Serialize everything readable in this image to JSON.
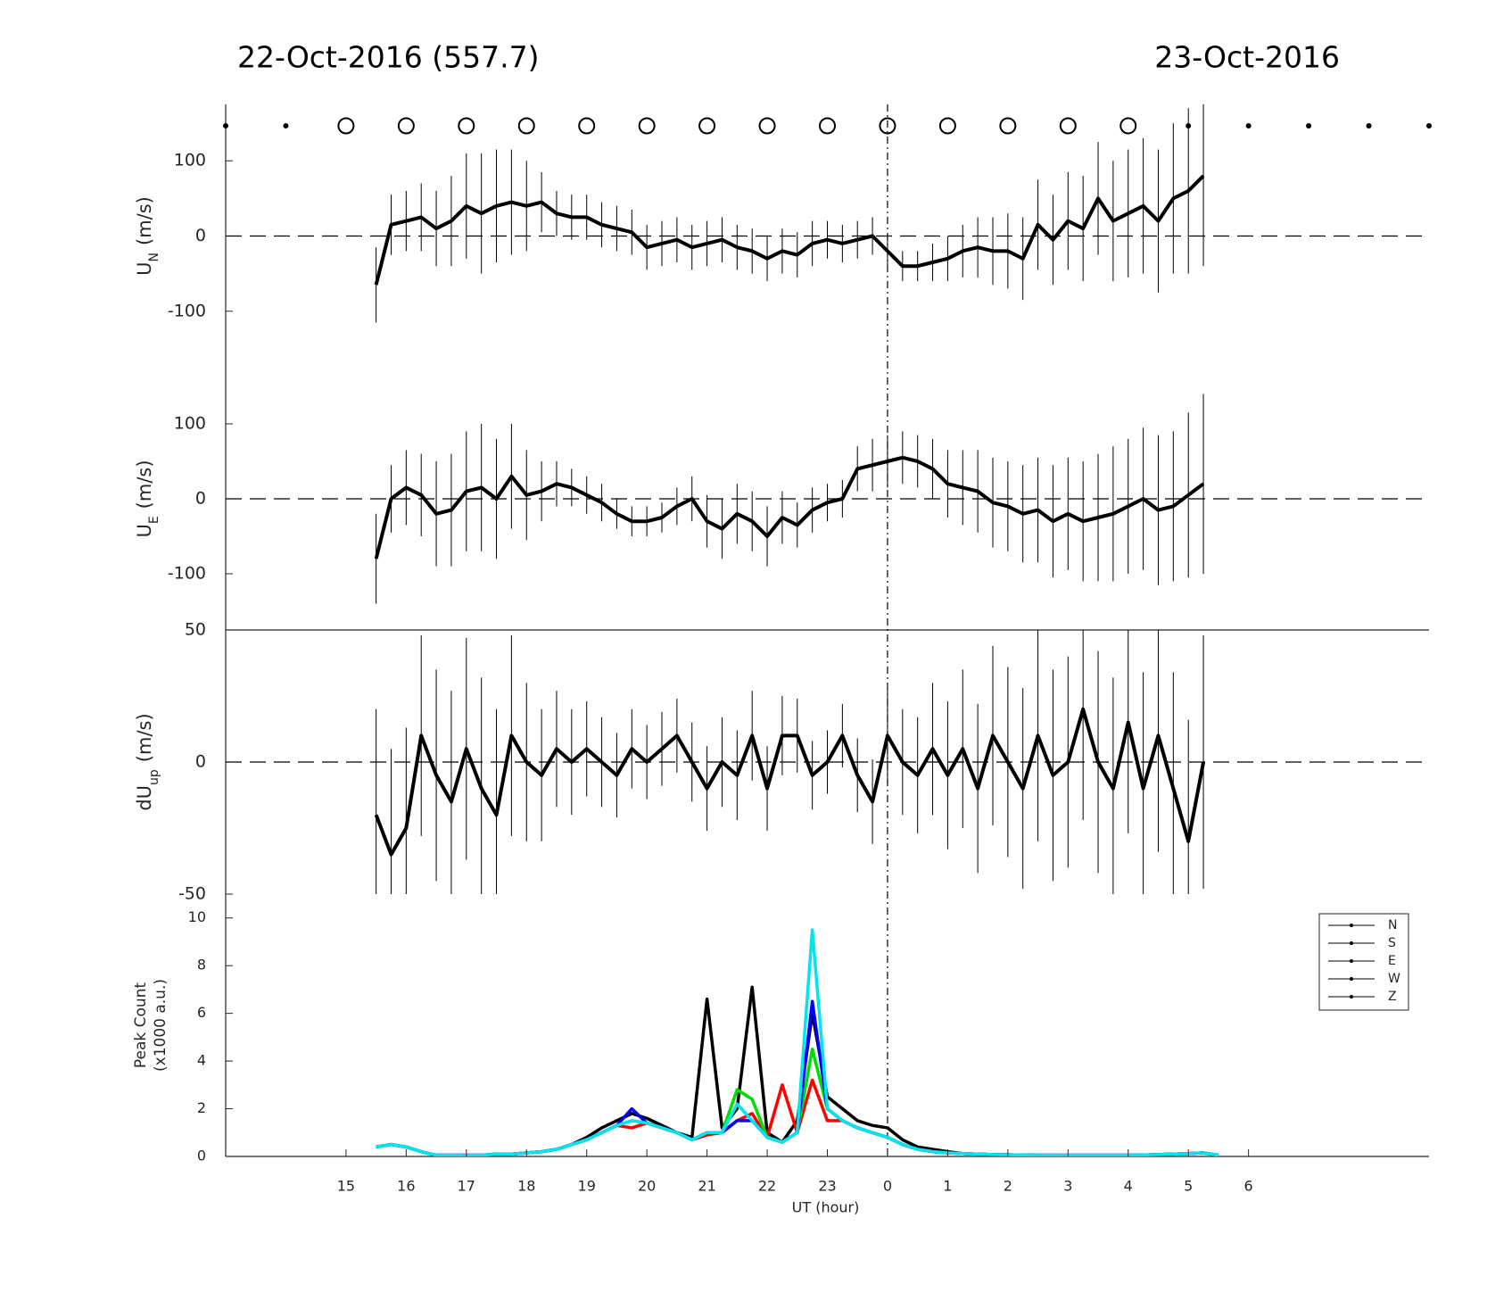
{
  "header": {
    "left": "22-Oct-2016 (557.7)",
    "right": "23-Oct-2016"
  },
  "markers": {
    "circle_hours": [
      15,
      16,
      17,
      18,
      19,
      20,
      21,
      22,
      23,
      24,
      25,
      26,
      27,
      28
    ],
    "dot_hours": [
      13,
      14,
      29,
      30,
      31,
      32,
      33
    ]
  },
  "vline": 24,
  "chart_data": [
    {
      "type": "errorbar",
      "ylabel": "U",
      "ylabel_sub": "N",
      "ylabel_unit": "(m/s)",
      "xlim": [
        13,
        33
      ],
      "ylim": [
        -175,
        175
      ],
      "yticks": [
        -100,
        0,
        100
      ],
      "x": [
        15.5,
        15.75,
        16,
        16.25,
        16.5,
        16.75,
        17,
        17.25,
        17.5,
        17.75,
        18,
        18.25,
        18.5,
        18.75,
        19,
        19.25,
        19.5,
        19.75,
        20,
        20.25,
        20.5,
        20.75,
        21,
        21.25,
        21.5,
        21.75,
        22,
        22.25,
        22.5,
        22.75,
        23,
        23.25,
        23.5,
        23.75,
        24,
        24.25,
        24.5,
        24.75,
        25,
        25.25,
        25.5,
        25.75,
        26,
        26.25,
        26.5,
        26.75,
        27,
        27.25,
        27.5,
        27.75,
        28,
        28.25,
        28.5,
        28.75,
        29,
        29.25
      ],
      "values": [
        -65,
        15,
        20,
        25,
        10,
        20,
        40,
        30,
        40,
        45,
        40,
        45,
        30,
        25,
        25,
        15,
        10,
        5,
        -15,
        -10,
        -5,
        -15,
        -10,
        -5,
        -15,
        -20,
        -30,
        -20,
        -25,
        -10,
        -5,
        -10,
        -5,
        0,
        -20,
        -40,
        -40,
        -35,
        -30,
        -20,
        -15,
        -20,
        -20,
        -30,
        15,
        -5,
        20,
        10,
        50,
        20,
        30,
        40,
        20,
        50,
        60,
        80
      ],
      "errors": [
        50,
        40,
        40,
        45,
        50,
        60,
        70,
        80,
        75,
        70,
        60,
        40,
        30,
        30,
        30,
        30,
        30,
        30,
        30,
        30,
        30,
        30,
        30,
        30,
        30,
        30,
        30,
        30,
        30,
        30,
        25,
        25,
        25,
        25,
        20,
        20,
        20,
        25,
        30,
        35,
        40,
        45,
        50,
        55,
        60,
        60,
        65,
        70,
        75,
        80,
        85,
        90,
        95,
        100,
        110,
        120
      ]
    },
    {
      "type": "errorbar",
      "ylabel": "U",
      "ylabel_sub": "E",
      "ylabel_unit": "(m/s)",
      "xlim": [
        13,
        33
      ],
      "ylim": [
        -175,
        175
      ],
      "yticks": [
        -100,
        0,
        100
      ],
      "x": [
        15.5,
        15.75,
        16,
        16.25,
        16.5,
        16.75,
        17,
        17.25,
        17.5,
        17.75,
        18,
        18.25,
        18.5,
        18.75,
        19,
        19.25,
        19.5,
        19.75,
        20,
        20.25,
        20.5,
        20.75,
        21,
        21.25,
        21.5,
        21.75,
        22,
        22.25,
        22.5,
        22.75,
        23,
        23.25,
        23.5,
        23.75,
        24,
        24.25,
        24.5,
        24.75,
        25,
        25.25,
        25.5,
        25.75,
        26,
        26.25,
        26.5,
        26.75,
        27,
        27.25,
        27.5,
        27.75,
        28,
        28.25,
        28.5,
        28.75,
        29,
        29.25
      ],
      "values": [
        -80,
        0,
        15,
        5,
        -20,
        -15,
        10,
        15,
        0,
        30,
        5,
        10,
        20,
        15,
        5,
        -5,
        -20,
        -30,
        -30,
        -25,
        -10,
        0,
        -30,
        -40,
        -20,
        -30,
        -50,
        -25,
        -35,
        -15,
        -5,
        0,
        40,
        45,
        50,
        55,
        50,
        40,
        20,
        15,
        10,
        -5,
        -10,
        -20,
        -15,
        -30,
        -20,
        -30,
        -25,
        -20,
        -10,
        0,
        -15,
        -10,
        5,
        20
      ],
      "errors": [
        60,
        45,
        50,
        55,
        70,
        75,
        80,
        85,
        80,
        70,
        60,
        40,
        30,
        25,
        25,
        25,
        20,
        20,
        20,
        20,
        25,
        30,
        35,
        40,
        40,
        40,
        40,
        35,
        30,
        30,
        25,
        25,
        30,
        35,
        35,
        35,
        35,
        40,
        45,
        50,
        55,
        60,
        60,
        65,
        70,
        75,
        75,
        80,
        85,
        90,
        90,
        95,
        100,
        100,
        110,
        120
      ]
    },
    {
      "type": "errorbar",
      "ylabel": "dU",
      "ylabel_sub": "up",
      "ylabel_unit": "(m/s)",
      "xlim": [
        13,
        33
      ],
      "ylim": [
        -50,
        50
      ],
      "yticks": [
        -50,
        0,
        50
      ],
      "x": [
        15.5,
        15.75,
        16,
        16.25,
        16.5,
        16.75,
        17,
        17.25,
        17.5,
        17.75,
        18,
        18.25,
        18.5,
        18.75,
        19,
        19.25,
        19.5,
        19.75,
        20,
        20.25,
        20.5,
        20.75,
        21,
        21.25,
        21.5,
        21.75,
        22,
        22.25,
        22.5,
        22.75,
        23,
        23.25,
        23.5,
        23.75,
        24,
        24.25,
        24.5,
        24.75,
        25,
        25.25,
        25.5,
        25.75,
        26,
        26.25,
        26.5,
        26.75,
        27,
        27.25,
        27.5,
        27.75,
        28,
        28.25,
        28.5,
        28.75,
        29,
        29.25
      ],
      "values": [
        -20,
        -35,
        -25,
        10,
        -5,
        -15,
        5,
        -10,
        -20,
        10,
        0,
        -5,
        5,
        0,
        5,
        0,
        -5,
        5,
        0,
        5,
        10,
        0,
        -10,
        0,
        -5,
        10,
        -10,
        10,
        10,
        -5,
        0,
        10,
        -5,
        -15,
        10,
        0,
        -5,
        5,
        -5,
        5,
        -10,
        10,
        0,
        -10,
        10,
        -5,
        0,
        20,
        0,
        -10,
        15,
        -10,
        10,
        -10,
        -30,
        0
      ],
      "errors": [
        40,
        40,
        38,
        38,
        40,
        42,
        42,
        42,
        40,
        38,
        30,
        25,
        22,
        20,
        18,
        17,
        16,
        15,
        14,
        14,
        14,
        15,
        16,
        17,
        17,
        17,
        16,
        15,
        14,
        13,
        12,
        12,
        14,
        16,
        18,
        20,
        22,
        25,
        28,
        30,
        32,
        34,
        36,
        38,
        40,
        40,
        40,
        42,
        42,
        42,
        42,
        44,
        44,
        44,
        46,
        48
      ]
    },
    {
      "type": "line",
      "ylabel": "Peak Count",
      "ylabel2": "(x1000 a.u.)",
      "xlabel": "UT (hour)",
      "xlim": [
        13,
        33
      ],
      "ylim": [
        0,
        11
      ],
      "yticks": [
        0,
        2,
        4,
        6,
        8,
        10
      ],
      "xticks": [
        15,
        16,
        17,
        18,
        19,
        20,
        21,
        22,
        23,
        {
          "value": 24,
          "label": "0"
        },
        {
          "value": 25,
          "label": "1"
        },
        {
          "value": 26,
          "label": "2"
        },
        {
          "value": 27,
          "label": "3"
        },
        {
          "value": 28,
          "label": "4"
        },
        {
          "value": 29,
          "label": "5"
        },
        {
          "value": 30,
          "label": "6"
        }
      ],
      "legend_line_color": "#000000",
      "x": [
        15.5,
        15.75,
        16,
        16.25,
        16.5,
        16.75,
        17,
        17.25,
        17.5,
        17.75,
        18,
        18.25,
        18.5,
        18.75,
        19,
        19.25,
        19.5,
        19.75,
        20,
        20.25,
        20.5,
        20.75,
        21,
        21.25,
        21.5,
        21.75,
        22,
        22.25,
        22.5,
        22.75,
        23,
        23.25,
        23.5,
        23.75,
        24,
        24.25,
        24.5,
        24.75,
        25,
        25.25,
        25.5,
        25.75,
        26,
        26.25,
        26.5,
        26.75,
        27,
        27.25,
        27.5,
        27.75,
        28,
        28.25,
        28.5,
        28.75,
        29,
        29.25,
        29.5
      ],
      "series": [
        {
          "name": "N",
          "color": "#000000",
          "values": [
            0.4,
            0.5,
            0.4,
            0.2,
            0.05,
            0.05,
            0.05,
            0.05,
            0.1,
            0.1,
            0.15,
            0.2,
            0.3,
            0.5,
            0.8,
            1.2,
            1.5,
            1.8,
            1.6,
            1.3,
            1.0,
            0.8,
            6.6,
            1.2,
            2.0,
            7.1,
            1.0,
            0.6,
            1.5,
            6.0,
            2.5,
            2.0,
            1.5,
            1.3,
            1.2,
            0.7,
            0.4,
            0.3,
            0.2,
            0.12,
            0.1,
            0.08,
            0.07,
            0.06,
            0.05,
            0.05,
            0.05,
            0.05,
            0.05,
            0.05,
            0.05,
            0.06,
            0.08,
            0.1,
            0.12,
            0.15,
            0.05
          ]
        },
        {
          "name": "S",
          "color": "#ff0000",
          "values": [
            0.4,
            0.5,
            0.4,
            0.2,
            0.05,
            0.05,
            0.05,
            0.05,
            0.1,
            0.1,
            0.15,
            0.2,
            0.3,
            0.5,
            0.7,
            1.0,
            1.3,
            1.2,
            1.4,
            1.2,
            1.0,
            0.7,
            0.9,
            1.0,
            1.5,
            1.8,
            0.8,
            3.0,
            1.0,
            3.2,
            1.5,
            1.5,
            1.2,
            1.0,
            0.8,
            0.5,
            0.3,
            0.2,
            0.15,
            0.12,
            0.1,
            0.08,
            0.07,
            0.06,
            0.05,
            0.05,
            0.05,
            0.05,
            0.05,
            0.05,
            0.05,
            0.06,
            0.08,
            0.1,
            0.12,
            0.15,
            0.05
          ]
        },
        {
          "name": "E",
          "color": "#00dd00",
          "values": [
            0.4,
            0.5,
            0.4,
            0.2,
            0.05,
            0.05,
            0.05,
            0.05,
            0.1,
            0.1,
            0.15,
            0.2,
            0.3,
            0.5,
            0.7,
            1.0,
            1.3,
            1.5,
            1.4,
            1.2,
            1.0,
            0.7,
            1.0,
            1.0,
            2.8,
            2.4,
            0.8,
            0.6,
            1.0,
            4.5,
            2.0,
            1.5,
            1.2,
            1.0,
            0.8,
            0.5,
            0.3,
            0.2,
            0.15,
            0.12,
            0.1,
            0.08,
            0.07,
            0.06,
            0.05,
            0.05,
            0.05,
            0.05,
            0.05,
            0.05,
            0.05,
            0.06,
            0.08,
            0.1,
            0.12,
            0.15,
            0.05
          ]
        },
        {
          "name": "W",
          "color": "#0000ff",
          "values": [
            0.4,
            0.5,
            0.4,
            0.2,
            0.05,
            0.05,
            0.05,
            0.05,
            0.1,
            0.1,
            0.15,
            0.2,
            0.3,
            0.5,
            0.7,
            1.0,
            1.3,
            2.0,
            1.4,
            1.2,
            1.0,
            0.7,
            1.0,
            1.0,
            1.5,
            1.5,
            0.8,
            0.6,
            1.0,
            6.5,
            2.0,
            1.5,
            1.2,
            1.0,
            0.8,
            0.5,
            0.3,
            0.2,
            0.15,
            0.12,
            0.1,
            0.08,
            0.07,
            0.06,
            0.05,
            0.05,
            0.05,
            0.05,
            0.05,
            0.05,
            0.05,
            0.06,
            0.08,
            0.1,
            0.12,
            0.15,
            0.05
          ]
        },
        {
          "name": "Z",
          "color": "#00e5ee",
          "values": [
            0.4,
            0.5,
            0.4,
            0.2,
            0.05,
            0.05,
            0.05,
            0.05,
            0.1,
            0.1,
            0.15,
            0.2,
            0.3,
            0.5,
            0.7,
            1.0,
            1.3,
            1.5,
            1.4,
            1.2,
            1.0,
            0.7,
            1.0,
            1.0,
            2.2,
            1.5,
            0.8,
            0.6,
            1.0,
            9.5,
            2.0,
            1.5,
            1.2,
            1.0,
            0.8,
            0.5,
            0.3,
            0.2,
            0.15,
            0.12,
            0.1,
            0.08,
            0.07,
            0.06,
            0.05,
            0.05,
            0.05,
            0.05,
            0.05,
            0.05,
            0.05,
            0.06,
            0.08,
            0.1,
            0.12,
            0.15,
            0.05
          ]
        }
      ]
    }
  ]
}
